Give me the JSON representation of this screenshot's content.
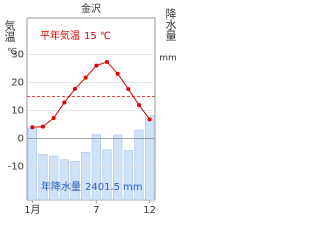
{
  "chart_data": {
    "type": "climate",
    "title": "金沢",
    "y_label": "気温",
    "y_unit": "℃",
    "y2_label": "降水量",
    "y2_unit": "mm",
    "categories": [
      "1月",
      null,
      null,
      null,
      null,
      null,
      "7",
      null,
      null,
      null,
      null,
      "12"
    ],
    "series": [
      {
        "name": "降水量",
        "type": "bar",
        "axis": "y2",
        "color": "#cfe2f8",
        "values": [
          256.0,
          162.6,
          157.2,
          143.9,
          138.0,
          170.3,
          233.8,
          179.3,
          231.9,
          177.1,
          250.3,
          301.1
        ]
      },
      {
        "name": "気温",
        "type": "line",
        "color": "#e00000",
        "values": [
          4.0,
          4.2,
          7.3,
          12.8,
          17.7,
          21.7,
          26.0,
          27.3,
          23.1,
          17.6,
          11.9,
          6.8
        ]
      }
    ],
    "annual_temp_label": "平年気温",
    "annual_temp": 15.0,
    "annual_temp_unit": "℃",
    "annual_precip_label": "年降水量",
    "annual_precip": 2401.5,
    "annual_precip_unit": "mm",
    "ylim": [
      -22,
      43
    ],
    "yticks": [
      -10,
      0,
      10,
      20,
      30
    ],
    "y2lim": [
      0,
      650
    ],
    "grid": true
  }
}
